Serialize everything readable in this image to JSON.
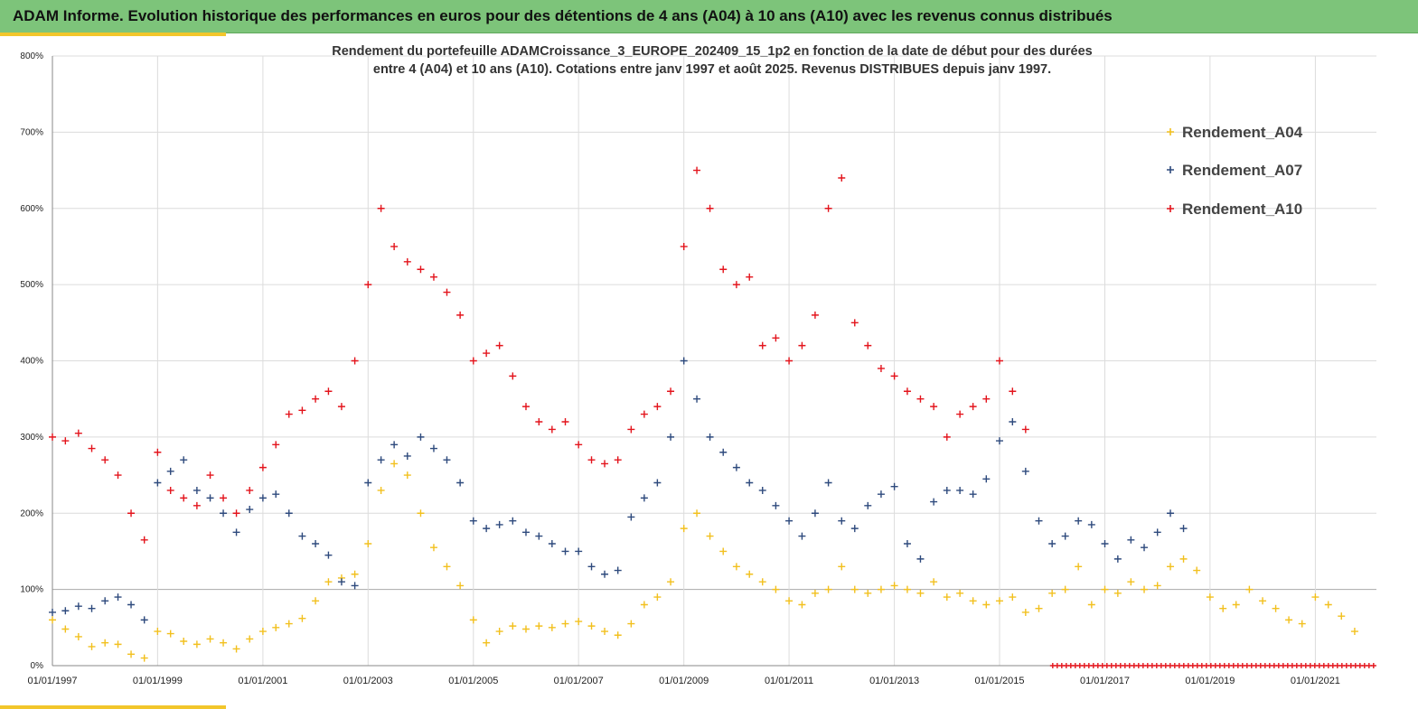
{
  "banner": {
    "title": "ADAM Informe. Evolution historique des performances en euros pour des détentions de 4 ans (A04) à 10 ans (A10) avec les revenus connus distribués"
  },
  "colors": {
    "banner_bg": "#7dc47a",
    "accent_yellow": "#f2c62b",
    "A04": "#f2c01e",
    "A07": "#2e4a7d",
    "A10": "#e3141c"
  },
  "chart_data": {
    "type": "scatter",
    "title_line1": "Rendement du portefeuille ADAMCroissance_3_EUROPE_202409_15_1p2  en fonction de la date de début pour des durées",
    "title_line2": "entre 4 (A04) et 10 ans (A10). Cotations entre janv 1997 et août 2025. Revenus DISTRIBUES depuis janv 1997.",
    "xlabel": "",
    "ylabel": "",
    "xlim": [
      "1997-01-01",
      "2022-03-01"
    ],
    "ylim": [
      0,
      800
    ],
    "y_ticks": [
      0,
      100,
      200,
      300,
      400,
      500,
      600,
      700,
      800
    ],
    "y_tick_labels": [
      "0%",
      "100%",
      "200%",
      "300%",
      "400%",
      "500%",
      "600%",
      "700%",
      "800%"
    ],
    "x_tick_labels": [
      "01/01/1997",
      "01/01/1999",
      "01/01/2001",
      "01/01/2003",
      "01/01/2005",
      "01/01/2007",
      "01/01/2009",
      "01/01/2011",
      "01/01/2013",
      "01/01/2015",
      "01/01/2017",
      "01/01/2019",
      "01/01/2021"
    ],
    "x_ticks": [
      "1997-01-01",
      "1999-01-01",
      "2001-01-01",
      "2003-01-01",
      "2005-01-01",
      "2007-01-01",
      "2009-01-01",
      "2011-01-01",
      "2013-01-01",
      "2015-01-01",
      "2017-01-01",
      "2019-01-01",
      "2021-01-01"
    ],
    "grid": true,
    "legend_position": "top-right",
    "marker": "plus",
    "series": [
      {
        "name": "Rendement_A04",
        "color": "#f2c01e",
        "x": [
          "1997-01-01",
          "1997-04-01",
          "1997-07-01",
          "1997-10-01",
          "1998-01-01",
          "1998-04-01",
          "1998-07-01",
          "1998-10-01",
          "1999-01-01",
          "1999-04-01",
          "1999-07-01",
          "1999-10-01",
          "2000-01-01",
          "2000-04-01",
          "2000-07-01",
          "2000-10-01",
          "2001-01-01",
          "2001-04-01",
          "2001-07-01",
          "2001-10-01",
          "2002-01-01",
          "2002-04-01",
          "2002-07-01",
          "2002-10-01",
          "2003-01-01",
          "2003-04-01",
          "2003-07-01",
          "2003-10-01",
          "2004-01-01",
          "2004-04-01",
          "2004-07-01",
          "2004-10-01",
          "2005-01-01",
          "2005-04-01",
          "2005-07-01",
          "2005-10-01",
          "2006-01-01",
          "2006-04-01",
          "2006-07-01",
          "2006-10-01",
          "2007-01-01",
          "2007-04-01",
          "2007-07-01",
          "2007-10-01",
          "2008-01-01",
          "2008-04-01",
          "2008-07-01",
          "2008-10-01",
          "2009-01-01",
          "2009-04-01",
          "2009-07-01",
          "2009-10-01",
          "2010-01-01",
          "2010-04-01",
          "2010-07-01",
          "2010-10-01",
          "2011-01-01",
          "2011-04-01",
          "2011-07-01",
          "2011-10-01",
          "2012-01-01",
          "2012-04-01",
          "2012-07-01",
          "2012-10-01",
          "2013-01-01",
          "2013-04-01",
          "2013-07-01",
          "2013-10-01",
          "2014-01-01",
          "2014-04-01",
          "2014-07-01",
          "2014-10-01",
          "2015-01-01",
          "2015-04-01",
          "2015-07-01",
          "2015-10-01",
          "2016-01-01",
          "2016-04-01",
          "2016-07-01",
          "2016-10-01",
          "2017-01-01",
          "2017-04-01",
          "2017-07-01",
          "2017-10-01",
          "2018-01-01",
          "2018-04-01",
          "2018-07-01",
          "2018-10-01",
          "2019-01-01",
          "2019-04-01",
          "2019-07-01",
          "2019-10-01",
          "2020-01-01",
          "2020-04-01",
          "2020-07-01",
          "2020-10-01",
          "2021-01-01",
          "2021-04-01",
          "2021-07-01",
          "2021-10-01"
        ],
        "values": [
          60,
          48,
          38,
          25,
          30,
          28,
          15,
          10,
          45,
          42,
          32,
          28,
          35,
          30,
          22,
          35,
          45,
          50,
          55,
          62,
          85,
          110,
          115,
          120,
          160,
          230,
          265,
          250,
          200,
          155,
          130,
          105,
          60,
          30,
          45,
          52,
          48,
          52,
          50,
          55,
          58,
          52,
          45,
          40,
          55,
          80,
          90,
          110,
          180,
          200,
          170,
          150,
          130,
          120,
          110,
          100,
          85,
          80,
          95,
          100,
          130,
          100,
          95,
          100,
          105,
          100,
          95,
          110,
          90,
          95,
          85,
          80,
          85,
          90,
          70,
          75,
          95,
          100,
          130,
          80,
          100,
          95,
          110,
          100,
          105,
          130,
          140,
          125,
          90,
          75,
          80,
          100,
          85,
          75,
          60,
          55,
          90,
          80,
          65,
          45
        ]
      },
      {
        "name": "Rendement_A07",
        "color": "#2e4a7d",
        "x": [
          "1997-01-01",
          "1997-04-01",
          "1997-07-01",
          "1997-10-01",
          "1998-01-01",
          "1998-04-01",
          "1998-07-01",
          "1998-10-01",
          "1999-01-01",
          "1999-04-01",
          "1999-07-01",
          "1999-10-01",
          "2000-01-01",
          "2000-04-01",
          "2000-07-01",
          "2000-10-01",
          "2001-01-01",
          "2001-04-01",
          "2001-07-01",
          "2001-10-01",
          "2002-01-01",
          "2002-04-01",
          "2002-07-01",
          "2002-10-01",
          "2003-01-01",
          "2003-04-01",
          "2003-07-01",
          "2003-10-01",
          "2004-01-01",
          "2004-04-01",
          "2004-07-01",
          "2004-10-01",
          "2005-01-01",
          "2005-04-01",
          "2005-07-01",
          "2005-10-01",
          "2006-01-01",
          "2006-04-01",
          "2006-07-01",
          "2006-10-01",
          "2007-01-01",
          "2007-04-01",
          "2007-07-01",
          "2007-10-01",
          "2008-01-01",
          "2008-04-01",
          "2008-07-01",
          "2008-10-01",
          "2009-01-01",
          "2009-04-01",
          "2009-07-01",
          "2009-10-01",
          "2010-01-01",
          "2010-04-01",
          "2010-07-01",
          "2010-10-01",
          "2011-01-01",
          "2011-04-01",
          "2011-07-01",
          "2011-10-01",
          "2012-01-01",
          "2012-04-01",
          "2012-07-01",
          "2012-10-01",
          "2013-01-01",
          "2013-04-01",
          "2013-07-01",
          "2013-10-01",
          "2014-01-01",
          "2014-04-01",
          "2014-07-01",
          "2014-10-01",
          "2015-01-01",
          "2015-04-01",
          "2015-07-01",
          "2015-10-01",
          "2016-01-01",
          "2016-04-01",
          "2016-07-01",
          "2016-10-01",
          "2017-01-01",
          "2017-04-01",
          "2017-07-01",
          "2017-10-01",
          "2018-01-01",
          "2018-04-01",
          "2018-07-01"
        ],
        "values": [
          70,
          72,
          78,
          75,
          85,
          90,
          80,
          60,
          240,
          255,
          270,
          230,
          220,
          200,
          175,
          205,
          220,
          225,
          200,
          170,
          160,
          145,
          110,
          105,
          240,
          270,
          290,
          275,
          300,
          285,
          270,
          240,
          190,
          180,
          185,
          190,
          175,
          170,
          160,
          150,
          150,
          130,
          120,
          125,
          195,
          220,
          240,
          300,
          400,
          350,
          300,
          280,
          260,
          240,
          230,
          210,
          190,
          170,
          200,
          240,
          190,
          180,
          210,
          225,
          235,
          160,
          140,
          215,
          230,
          230,
          225,
          245,
          295,
          320,
          255,
          190,
          160,
          170,
          190,
          185,
          160,
          140,
          165,
          155,
          175,
          200,
          180
        ]
      },
      {
        "name": "Rendement_A10",
        "color": "#e3141c",
        "x": [
          "1997-01-01",
          "1997-04-01",
          "1997-07-01",
          "1997-10-01",
          "1998-01-01",
          "1998-04-01",
          "1998-07-01",
          "1998-10-01",
          "1999-01-01",
          "1999-04-01",
          "1999-07-01",
          "1999-10-01",
          "2000-01-01",
          "2000-04-01",
          "2000-07-01",
          "2000-10-01",
          "2001-01-01",
          "2001-04-01",
          "2001-07-01",
          "2001-10-01",
          "2002-01-01",
          "2002-04-01",
          "2002-07-01",
          "2002-10-01",
          "2003-01-01",
          "2003-04-01",
          "2003-07-01",
          "2003-10-01",
          "2004-01-01",
          "2004-04-01",
          "2004-07-01",
          "2004-10-01",
          "2005-01-01",
          "2005-04-01",
          "2005-07-01",
          "2005-10-01",
          "2006-01-01",
          "2006-04-01",
          "2006-07-01",
          "2006-10-01",
          "2007-01-01",
          "2007-04-01",
          "2007-07-01",
          "2007-10-01",
          "2008-01-01",
          "2008-04-01",
          "2008-07-01",
          "2008-10-01",
          "2009-01-01",
          "2009-04-01",
          "2009-07-01",
          "2009-10-01",
          "2010-01-01",
          "2010-04-01",
          "2010-07-01",
          "2010-10-01",
          "2011-01-01",
          "2011-04-01",
          "2011-07-01",
          "2011-10-01",
          "2012-01-01",
          "2012-04-01",
          "2012-07-01",
          "2012-10-01",
          "2013-01-01",
          "2013-04-01",
          "2013-07-01",
          "2013-10-01",
          "2014-01-01",
          "2014-04-01",
          "2014-07-01",
          "2014-10-01",
          "2015-01-01",
          "2015-04-01",
          "2015-07-01"
        ],
        "values": [
          300,
          295,
          305,
          285,
          270,
          250,
          200,
          165,
          280,
          230,
          220,
          210,
          250,
          220,
          200,
          230,
          260,
          290,
          330,
          335,
          350,
          360,
          340,
          400,
          500,
          600,
          550,
          530,
          520,
          510,
          490,
          460,
          400,
          410,
          420,
          380,
          340,
          320,
          310,
          320,
          290,
          270,
          265,
          270,
          310,
          330,
          340,
          360,
          550,
          650,
          600,
          520,
          500,
          510,
          420,
          430,
          400,
          420,
          460,
          600,
          640,
          450,
          420,
          390,
          380,
          360,
          350,
          340,
          300,
          330,
          340,
          350,
          400,
          360,
          310
        ]
      }
    ]
  },
  "legend": {
    "items": [
      "Rendement_A04",
      "Rendement_A07",
      "Rendement_A10"
    ]
  }
}
